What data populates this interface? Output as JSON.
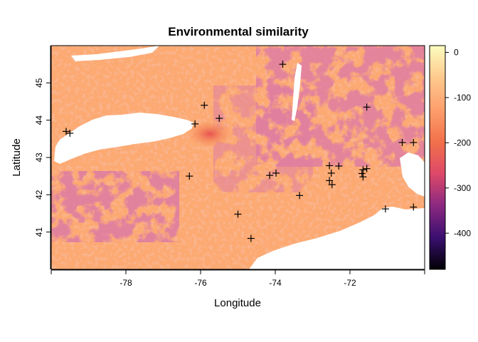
{
  "chart_data": {
    "type": "heatmap",
    "title": "Environmental similarity",
    "xlabel": "Longitude",
    "ylabel": "Latitude",
    "xlim": [
      -80.0,
      -70.0
    ],
    "ylim": [
      40.0,
      46.0
    ],
    "x_ticks": [
      -78,
      -76,
      -74,
      -72
    ],
    "x_tick_labels": [
      "-78",
      "-76",
      "-74",
      "-72"
    ],
    "y_ticks": [
      41,
      42,
      43,
      44,
      45
    ],
    "y_tick_labels": [
      "41",
      "42",
      "43",
      "44",
      "45"
    ],
    "colorbar": {
      "range": [
        -480,
        15
      ],
      "ticks": [
        0,
        -100,
        -200,
        -300,
        -400
      ],
      "tick_labels": [
        "0",
        "-100",
        "-200",
        "-300",
        "-400"
      ],
      "palette": [
        "#000004",
        "#3b0f70",
        "#8c2981",
        "#de4968",
        "#f2714a",
        "#fe9f6d",
        "#fec98d",
        "#fcfdbf"
      ]
    },
    "water_color": "#ffffff",
    "point_marker": "+",
    "points": [
      {
        "lon": -79.6,
        "lat": 43.7
      },
      {
        "lon": -79.5,
        "lat": 43.65
      },
      {
        "lon": -75.9,
        "lat": 44.4
      },
      {
        "lon": -76.15,
        "lat": 43.9
      },
      {
        "lon": -75.5,
        "lat": 44.05
      },
      {
        "lon": -73.8,
        "lat": 45.5
      },
      {
        "lon": -76.3,
        "lat": 42.5
      },
      {
        "lon": -74.15,
        "lat": 42.52
      },
      {
        "lon": -73.98,
        "lat": 42.58
      },
      {
        "lon": -75.0,
        "lat": 41.48
      },
      {
        "lon": -74.65,
        "lat": 40.83
      },
      {
        "lon": -73.35,
        "lat": 41.98
      },
      {
        "lon": -72.55,
        "lat": 42.78
      },
      {
        "lon": -72.3,
        "lat": 42.77
      },
      {
        "lon": -72.5,
        "lat": 42.58
      },
      {
        "lon": -72.55,
        "lat": 42.38
      },
      {
        "lon": -72.48,
        "lat": 42.27
      },
      {
        "lon": -71.65,
        "lat": 42.67
      },
      {
        "lon": -71.55,
        "lat": 42.7
      },
      {
        "lon": -71.68,
        "lat": 42.57
      },
      {
        "lon": -71.65,
        "lat": 42.48
      },
      {
        "lon": -71.55,
        "lat": 44.35
      },
      {
        "lon": -70.6,
        "lat": 43.4
      },
      {
        "lon": -70.3,
        "lat": 43.4
      },
      {
        "lon": -71.05,
        "lat": 41.62
      },
      {
        "lon": -70.3,
        "lat": 41.67
      }
    ]
  }
}
